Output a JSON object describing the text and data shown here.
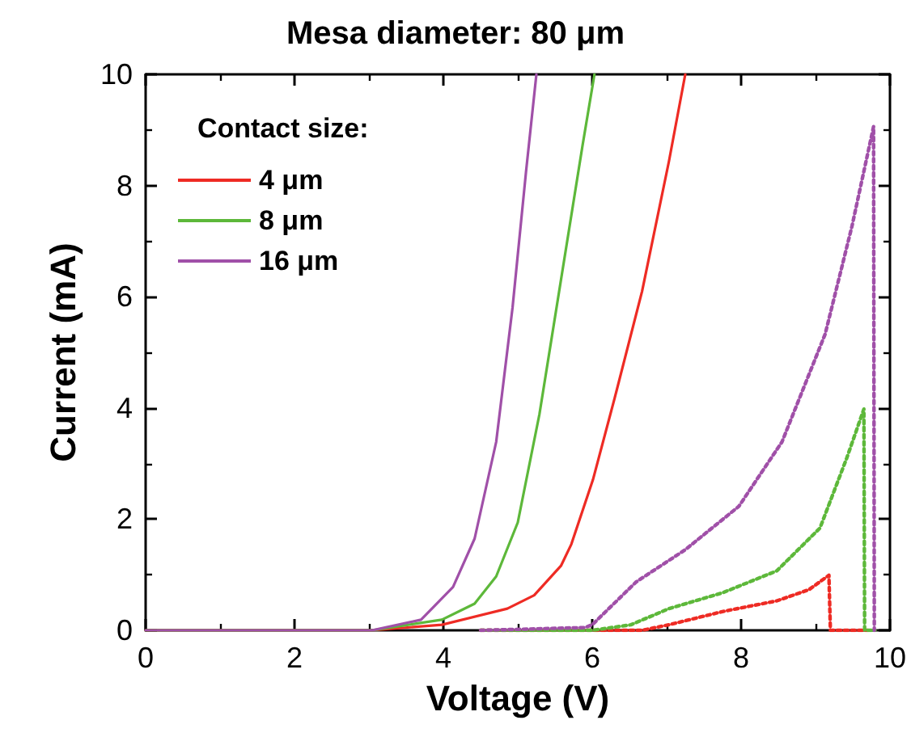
{
  "chart_data": {
    "type": "line",
    "title": "Mesa diameter: 80 μm",
    "xlabel": "Voltage (V)",
    "ylabel": "Current (mA)",
    "legend_title": "Contact size:",
    "xlim": [
      0,
      10
    ],
    "ylim": [
      0,
      10
    ],
    "xticks": [
      0,
      2,
      4,
      6,
      8,
      10
    ],
    "yticks": [
      0,
      2,
      4,
      6,
      8,
      10
    ],
    "grid": false,
    "legend": "top left",
    "marker": "none",
    "line_style": "solid",
    "series": [
      {
        "name": "4 μm",
        "color": "#ee2b24",
        "x": [
          0,
          3.04,
          3.98,
          4.86,
          5.22,
          5.58,
          5.72,
          6.01,
          6.3,
          6.67,
          7.03,
          7.25
        ],
        "values": [
          0,
          0,
          0.1,
          0.39,
          0.63,
          1.16,
          1.55,
          2.71,
          4.17,
          6.1,
          8.43,
          10
        ]
      },
      {
        "name": "8 μm",
        "color": "#5db83a",
        "x": [
          0,
          3.04,
          3.98,
          4.42,
          4.71,
          5.0,
          5.29,
          5.58,
          5.87,
          6.03
        ],
        "values": [
          0,
          0,
          0.19,
          0.48,
          0.97,
          1.94,
          3.88,
          6.3,
          8.72,
          10
        ]
      },
      {
        "name": "16 μm",
        "color": "#a050a8",
        "x": [
          0,
          3.04,
          3.7,
          4.13,
          4.42,
          4.71,
          4.93,
          5.11,
          5.25
        ],
        "values": [
          0,
          0,
          0.19,
          0.78,
          1.65,
          3.39,
          5.81,
          8.24,
          10
        ]
      },
      {
        "color": "#ee2b24",
        "line_style": "dotted",
        "x": [
          4.5,
          6.67,
          7.03,
          7.76,
          8.48,
          8.91,
          9.18,
          9.2,
          9.7
        ],
        "values": [
          0,
          0,
          0.1,
          0.34,
          0.53,
          0.73,
          0.99,
          0,
          0
        ]
      },
      {
        "color": "#5db83a",
        "line_style": "dotted",
        "x": [
          4.5,
          6.0,
          6.52,
          7.03,
          7.76,
          8.48,
          9.06,
          9.42,
          9.65,
          9.66,
          9.8
        ],
        "values": [
          0,
          0,
          0.1,
          0.39,
          0.68,
          1.07,
          1.84,
          3.1,
          3.98,
          0,
          0
        ]
      },
      {
        "color": "#a050a8",
        "line_style": "dotted",
        "x": [
          4.5,
          5.9,
          6.0,
          6.59,
          7.25,
          7.97,
          8.55,
          9.13,
          9.49,
          9.78,
          9.79
        ],
        "values": [
          0,
          0.05,
          0.1,
          0.87,
          1.45,
          2.23,
          3.39,
          5.33,
          7.27,
          9.06,
          0
        ]
      }
    ]
  }
}
